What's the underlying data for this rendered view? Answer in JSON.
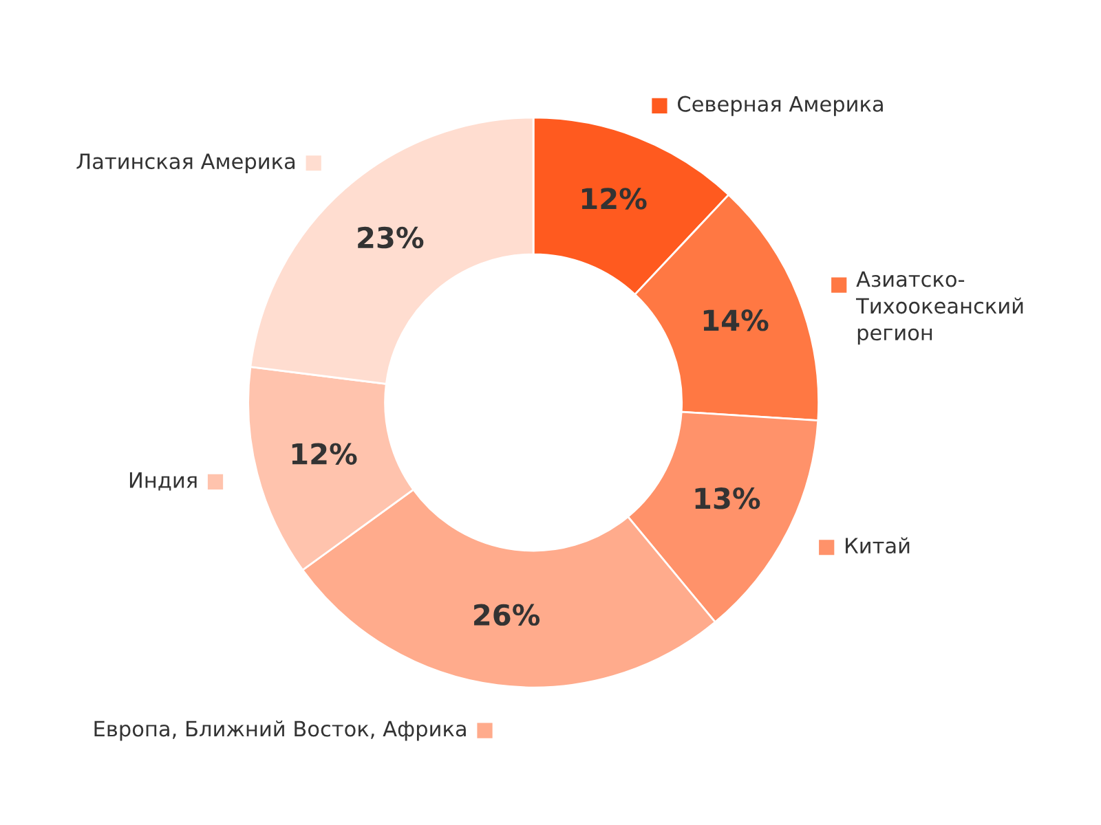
{
  "chart_data": {
    "type": "donut",
    "categories": [
      "Северная Америка",
      "Азиатско-\nТихоокеанский\nрегион",
      "Китай",
      "Европа, Ближний Восток, Африка",
      "Индия",
      "Латинская Америка"
    ],
    "values": [
      12,
      14,
      13,
      26,
      12,
      23
    ],
    "colors": [
      "#ff5a1f",
      "#ff7843",
      "#ff926a",
      "#ffab8c",
      "#ffc3ad",
      "#ffddd0"
    ],
    "value_labels": [
      "12%",
      "14%",
      "13%",
      "26%",
      "12%",
      "23%"
    ],
    "legend": "right"
  }
}
